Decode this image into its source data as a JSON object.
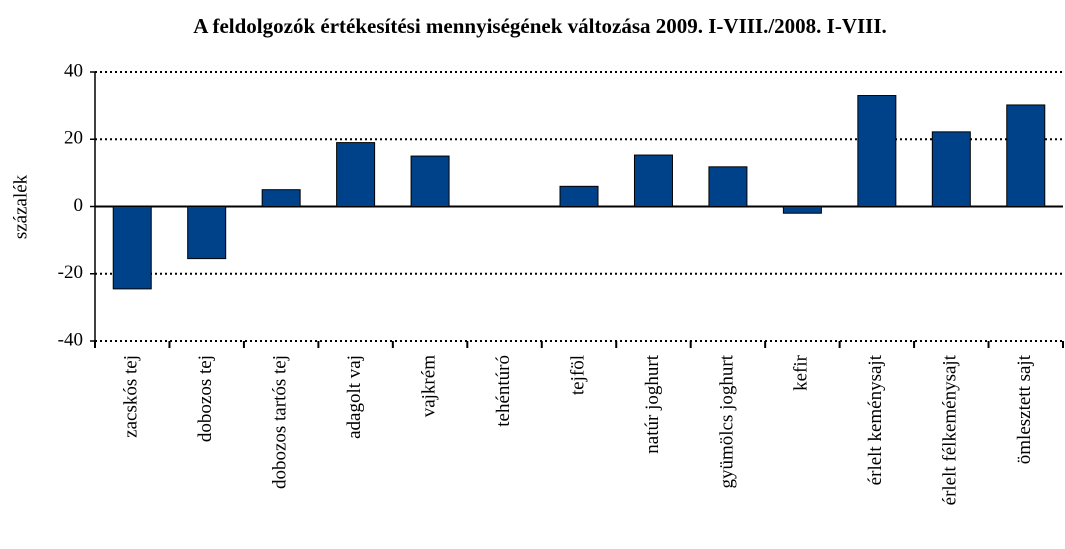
{
  "chart_data": {
    "type": "bar",
    "title": "A feldolgozók értékesítési mennyiségének változása 2009. I-VIII./2008. I-VIII.",
    "y_label": "százalék",
    "categories": [
      "zacskós tej",
      "dobozos tej",
      "dobozos tartós tej",
      "adagolt vaj",
      "vajkrém",
      "tehéntúró",
      "tejföl",
      "natúr joghurt",
      "gyümölcs joghurt",
      "kefir",
      "érlelt keménysajt",
      "érlelt félkeménysajt",
      "ömlesztett sajt"
    ],
    "values": [
      -24.5,
      -15.5,
      5,
      19,
      15,
      0,
      6,
      15.3,
      11.8,
      -2,
      33,
      22.2,
      30.2
    ],
    "color": "#00428a",
    "ylim": [
      -40,
      40
    ],
    "yticks": [
      -40,
      -20,
      0,
      20,
      40
    ],
    "grid": true
  }
}
